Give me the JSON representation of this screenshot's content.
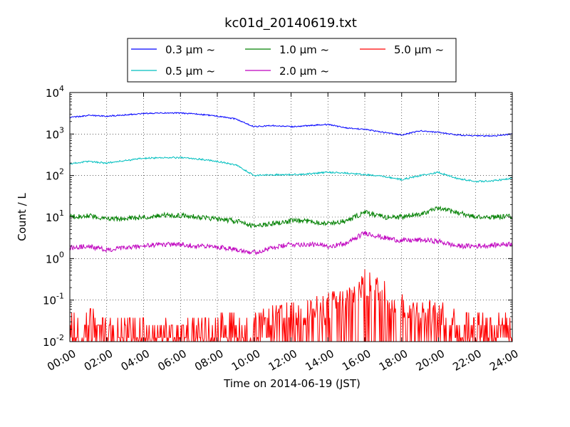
{
  "chart_data": {
    "type": "line",
    "title": "kc01d_20140619.txt",
    "xlabel": "Time on 2014-06-19 (JST)",
    "ylabel": "Count / L",
    "yscale": "log",
    "ylim": [
      0.01,
      10000
    ],
    "xlim": [
      "00:00",
      "24:00"
    ],
    "x_tick_labels": [
      "00:00",
      "02:00",
      "04:00",
      "06:00",
      "08:00",
      "10:00",
      "12:00",
      "14:00",
      "16:00",
      "18:00",
      "20:00",
      "22:00",
      "24:00"
    ],
    "y_tick_labels": [
      {
        "base": "10",
        "exp": "-2",
        "value": 0.01
      },
      {
        "base": "10",
        "exp": "-1",
        "value": 0.1
      },
      {
        "base": "10",
        "exp": "0",
        "value": 1
      },
      {
        "base": "10",
        "exp": "1",
        "value": 10
      },
      {
        "base": "10",
        "exp": "2",
        "value": 100
      },
      {
        "base": "10",
        "exp": "3",
        "value": 1000
      },
      {
        "base": "10",
        "exp": "4",
        "value": 10000
      }
    ],
    "grid": true,
    "legend_position": "top-center",
    "x": [
      "00:00",
      "01:00",
      "02:00",
      "03:00",
      "04:00",
      "05:00",
      "06:00",
      "07:00",
      "08:00",
      "09:00",
      "10:00",
      "11:00",
      "12:00",
      "13:00",
      "14:00",
      "15:00",
      "16:00",
      "17:00",
      "18:00",
      "19:00",
      "20:00",
      "21:00",
      "22:00",
      "23:00",
      "24:00"
    ],
    "series": [
      {
        "name": "0.3 μm ~",
        "color": "#0000ff",
        "noise": 0.015,
        "values": [
          2500,
          2800,
          2700,
          2900,
          3100,
          3200,
          3200,
          3000,
          2700,
          2300,
          1500,
          1600,
          1500,
          1600,
          1700,
          1400,
          1300,
          1100,
          950,
          1200,
          1100,
          950,
          900,
          900,
          1000
        ]
      },
      {
        "name": "0.5 μm ~",
        "color": "#00bfbf",
        "noise": 0.02,
        "values": [
          190,
          220,
          200,
          230,
          260,
          270,
          270,
          250,
          220,
          180,
          100,
          105,
          105,
          110,
          120,
          115,
          105,
          95,
          80,
          100,
          120,
          85,
          72,
          75,
          85
        ]
      },
      {
        "name": "1.0 μm ~",
        "color": "#008000",
        "noise": 0.06,
        "values": [
          10,
          11,
          9,
          9,
          10,
          11,
          11,
          10,
          9,
          8,
          6,
          7,
          8,
          8,
          7,
          8,
          13,
          10,
          10,
          12,
          16,
          13,
          10,
          10,
          10.5
        ]
      },
      {
        "name": "2.0 μm ~",
        "color": "#bf00bf",
        "noise": 0.06,
        "values": [
          1.8,
          2.0,
          1.6,
          1.8,
          2.0,
          2.2,
          2.2,
          2.0,
          1.9,
          1.7,
          1.4,
          1.8,
          2.2,
          2.2,
          2.0,
          2.3,
          4.2,
          3.2,
          2.7,
          2.8,
          2.6,
          2.0,
          2.0,
          2.1,
          2.3
        ]
      },
      {
        "name": "5.0 μm ~",
        "color": "#ff0000",
        "noise": 0.35,
        "values": [
          0.02,
          0.03,
          0.025,
          0.02,
          0.015,
          0.015,
          0.015,
          0.02,
          0.02,
          0.03,
          0.02,
          0.035,
          0.04,
          0.05,
          0.07,
          0.1,
          0.25,
          0.15,
          0.08,
          0.05,
          0.04,
          0.03,
          0.025,
          0.025,
          0.02
        ]
      }
    ]
  }
}
